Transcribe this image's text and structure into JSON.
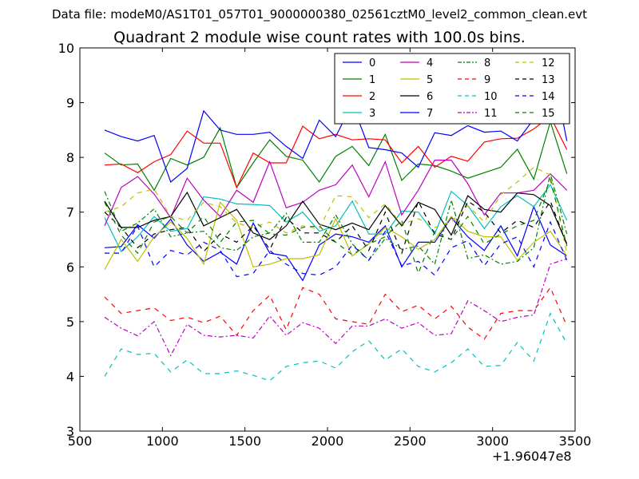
{
  "suptitle": "Data file: modeM0/AS1T01_057T01_9000000380_02561cztM0_level2_common_clean.evt",
  "chart_data": {
    "type": "line",
    "title": "Quadrant 2 module wise count rates with 100.0s bins.",
    "xlabel": "",
    "ylabel": "",
    "x_offset_label": "+1.96047e8",
    "xlim": [
      500,
      3500
    ],
    "ylim": [
      3,
      10
    ],
    "xticks": [
      500,
      1000,
      1500,
      2000,
      2500,
      3000,
      3500
    ],
    "yticks": [
      3,
      4,
      5,
      6,
      7,
      8,
      9,
      10
    ],
    "grid": false,
    "legend": {
      "position": "top-right",
      "columns": 4
    },
    "x": [
      650,
      750,
      850,
      950,
      1050,
      1150,
      1250,
      1350,
      1450,
      1550,
      1650,
      1750,
      1850,
      1950,
      2050,
      2150,
      2250,
      2350,
      2450,
      2550,
      2650,
      2750,
      2850,
      2950,
      3050,
      3150,
      3250,
      3350,
      3450
    ],
    "series": [
      {
        "name": "0",
        "color": "#0000ff",
        "dash": "solid",
        "values": [
          6.35,
          6.37,
          6.77,
          6.52,
          6.87,
          6.4,
          6.1,
          6.27,
          6.05,
          6.8,
          6.25,
          6.2,
          5.75,
          6.4,
          6.6,
          6.55,
          6.45,
          6.75,
          6.0,
          6.45,
          6.45,
          6.9,
          6.55,
          6.3,
          6.75,
          6.2,
          7.1,
          6.4,
          6.2
        ]
      },
      {
        "name": "1",
        "color": "#008000",
        "dash": "solid",
        "values": [
          8.08,
          7.86,
          7.88,
          7.4,
          7.98,
          7.86,
          8.0,
          8.54,
          7.45,
          7.9,
          8.32,
          8.02,
          7.95,
          7.55,
          8.02,
          8.2,
          7.85,
          8.42,
          7.58,
          7.88,
          7.85,
          7.75,
          7.62,
          7.72,
          7.82,
          8.15,
          7.6,
          8.65,
          7.7
        ]
      },
      {
        "name": "2",
        "color": "#ff0000",
        "dash": "solid",
        "values": [
          7.86,
          7.88,
          7.72,
          7.92,
          8.05,
          8.48,
          8.26,
          8.26,
          7.45,
          8.08,
          7.9,
          7.9,
          8.57,
          8.34,
          8.42,
          8.32,
          8.34,
          8.32,
          7.9,
          8.2,
          7.82,
          8.02,
          7.93,
          8.28,
          8.34,
          8.35,
          8.52,
          8.75,
          8.14
        ]
      },
      {
        "name": "3",
        "color": "#00bfbf",
        "dash": "solid",
        "values": [
          6.9,
          6.28,
          6.55,
          6.92,
          6.65,
          6.7,
          7.28,
          7.24,
          7.15,
          7.14,
          7.12,
          6.82,
          7.0,
          6.65,
          6.75,
          7.2,
          6.6,
          6.6,
          7.02,
          7.0,
          6.6,
          7.38,
          7.12,
          6.7,
          7.1,
          7.3,
          7.1,
          7.5,
          6.85
        ]
      },
      {
        "name": "4",
        "color": "#bf00bf",
        "dash": "solid",
        "values": [
          6.75,
          7.45,
          7.65,
          7.33,
          6.9,
          7.62,
          7.22,
          6.92,
          7.4,
          7.18,
          7.92,
          7.08,
          7.18,
          7.4,
          7.5,
          7.86,
          7.28,
          7.92,
          6.95,
          7.4,
          7.95,
          7.95,
          7.52,
          6.95,
          7.35,
          7.35,
          7.4,
          7.7,
          7.4
        ]
      },
      {
        "name": "5",
        "color": "#bfbf00",
        "dash": "solid",
        "values": [
          5.95,
          6.5,
          6.1,
          6.55,
          6.82,
          6.52,
          6.05,
          7.18,
          6.85,
          6.0,
          6.05,
          6.15,
          6.15,
          6.22,
          6.88,
          6.2,
          6.42,
          6.72,
          6.55,
          6.32,
          6.5,
          6.92,
          6.65,
          6.55,
          6.55,
          6.12,
          6.45,
          6.65,
          6.2
        ]
      },
      {
        "name": "6",
        "color": "#000000",
        "dash": "solid",
        "values": [
          7.2,
          6.72,
          6.72,
          6.85,
          6.92,
          7.36,
          6.75,
          6.9,
          7.05,
          6.62,
          6.5,
          6.75,
          7.2,
          6.78,
          6.68,
          6.8,
          6.68,
          7.12,
          6.75,
          7.18,
          7.05,
          6.58,
          7.3,
          7.05,
          7.0,
          7.35,
          7.32,
          7.12,
          6.42
        ]
      },
      {
        "name": "7",
        "color": "#0000ff",
        "dash": "solid",
        "values": [
          8.5,
          8.38,
          8.3,
          8.4,
          7.55,
          7.8,
          8.85,
          8.5,
          8.42,
          8.42,
          8.46,
          8.2,
          7.98,
          8.68,
          8.38,
          8.98,
          8.18,
          8.14,
          8.08,
          7.82,
          8.45,
          8.4,
          8.58,
          8.46,
          8.48,
          8.3,
          8.7,
          9.82,
          8.3
        ]
      },
      {
        "name": "8",
        "color": "#008000",
        "dash": "dashdot",
        "values": [
          7.38,
          6.65,
          6.8,
          7.06,
          6.55,
          6.62,
          6.65,
          6.35,
          6.3,
          6.55,
          6.62,
          6.98,
          6.45,
          6.45,
          6.95,
          6.42,
          6.12,
          6.52,
          6.32,
          6.38,
          6.05,
          7.22,
          6.15,
          6.22,
          6.05,
          6.1,
          6.35,
          7.7,
          6.6
        ]
      },
      {
        "name": "9",
        "color": "#ff0000",
        "dash": "dash",
        "values": [
          5.45,
          5.15,
          5.2,
          5.25,
          5.02,
          5.08,
          4.98,
          5.1,
          4.75,
          5.2,
          5.48,
          4.85,
          5.62,
          5.5,
          5.05,
          5.0,
          4.95,
          5.5,
          5.18,
          5.3,
          5.05,
          5.28,
          4.9,
          4.68,
          5.15,
          5.2,
          5.2,
          5.62,
          4.92
        ]
      },
      {
        "name": "10",
        "color": "#00bfbf",
        "dash": "dash",
        "values": [
          4.0,
          4.5,
          4.4,
          4.42,
          4.08,
          4.3,
          4.05,
          4.05,
          4.1,
          4.02,
          3.92,
          4.18,
          4.25,
          4.28,
          4.15,
          4.45,
          4.65,
          4.3,
          4.5,
          4.18,
          4.08,
          4.25,
          4.5,
          4.18,
          4.2,
          4.62,
          4.28,
          5.15,
          4.6
        ]
      },
      {
        "name": "11",
        "color": "#bf00bf",
        "dash": "dashdot",
        "values": [
          5.08,
          4.88,
          4.74,
          5.0,
          4.38,
          4.95,
          4.75,
          4.72,
          4.75,
          4.7,
          5.1,
          4.75,
          4.98,
          4.88,
          4.6,
          4.92,
          4.92,
          5.05,
          4.88,
          4.98,
          4.75,
          4.78,
          5.38,
          5.2,
          5.0,
          5.08,
          5.12,
          6.05,
          6.15
        ]
      },
      {
        "name": "12",
        "color": "#bfbf00",
        "dash": "dash",
        "values": [
          7.0,
          7.1,
          7.35,
          7.42,
          6.92,
          6.85,
          7.18,
          7.1,
          6.8,
          6.72,
          6.82,
          6.62,
          6.75,
          6.7,
          7.3,
          7.28,
          6.9,
          7.15,
          6.78,
          6.88,
          6.72,
          6.82,
          7.12,
          6.82,
          7.32,
          7.55,
          7.82,
          7.68,
          6.25
        ]
      },
      {
        "name": "13",
        "color": "#000000",
        "dash": "dash",
        "values": [
          7.0,
          6.72,
          6.35,
          6.6,
          6.68,
          6.72,
          6.28,
          6.6,
          6.45,
          6.75,
          6.32,
          6.9,
          6.62,
          6.62,
          6.45,
          6.75,
          6.3,
          7.0,
          6.25,
          7.2,
          6.6,
          6.5,
          7.2,
          7.0,
          6.62,
          6.85,
          6.72,
          7.2,
          6.4
        ]
      },
      {
        "name": "14",
        "color": "#0000ff",
        "dash": "dash",
        "values": [
          6.25,
          6.25,
          6.75,
          6.0,
          6.3,
          6.22,
          6.45,
          6.3,
          5.82,
          5.88,
          6.3,
          6.05,
          5.88,
          5.85,
          6.0,
          6.4,
          6.12,
          6.65,
          6.02,
          6.1,
          5.85,
          6.35,
          6.48,
          6.02,
          6.42,
          6.55,
          6.0,
          6.82,
          6.12
        ]
      },
      {
        "name": "15",
        "color": "#008000",
        "dash": "dash",
        "values": [
          7.18,
          6.58,
          6.25,
          6.82,
          6.92,
          6.62,
          6.92,
          6.45,
          6.82,
          6.85,
          6.6,
          6.58,
          6.72,
          6.75,
          6.45,
          6.22,
          6.42,
          6.55,
          6.85,
          5.88,
          6.65,
          6.5,
          6.92,
          6.42,
          6.6,
          6.75,
          6.85,
          7.6,
          6.38
        ]
      }
    ]
  }
}
